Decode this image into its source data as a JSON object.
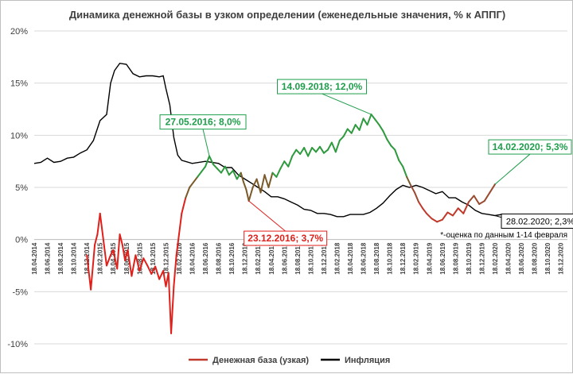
{
  "chart_data": {
    "type": "line",
    "title": "Динамика денежной базы в узком определении (еженедельные значения, % к АППГ)",
    "ylim": [
      -10,
      20
    ],
    "yticks": [
      "20%",
      "15%",
      "10%",
      "5%",
      "0%",
      "-5%",
      "-10%"
    ],
    "ytick_values": [
      20,
      15,
      10,
      5,
      0,
      -5,
      -10
    ],
    "grid": "horizontal",
    "legend_position": "bottom",
    "x_labels": [
      "18.04.2014",
      "18.06.2014",
      "18.08.2014",
      "18.10.2014",
      "18.12.2014",
      "18.02.2015",
      "18.04.2015",
      "18.06.2015",
      "18.08.2015",
      "18.10.2015",
      "18.12.2015",
      "18.02.2016",
      "18.04.2016",
      "18.06.2016",
      "18.08.2016",
      "18.10.2016",
      "18.12.2016",
      "18.02.2017",
      "18.04.2017",
      "18.06.2017",
      "18.08.2017",
      "18.10.2017",
      "18.12.2017",
      "18.02.2018",
      "18.04.2018",
      "18.06.2018",
      "18.08.2018",
      "18.10.2018",
      "18.12.2018",
      "18.02.2019",
      "18.04.2019",
      "18.06.2019",
      "18.08.2019",
      "18.10.2019",
      "18.12.2019",
      "18.02.2020",
      "18.04.2020",
      "18.06.2020",
      "18.08.2020",
      "18.10.2020",
      "18.12.2020"
    ],
    "series": [
      {
        "name": "Денежная база (узкая)",
        "color": "#c0392b",
        "points": [
          [
            4.0,
            -1.5
          ],
          [
            4.3,
            -4.8
          ],
          [
            4.6,
            -0.5
          ],
          [
            4.8,
            0.5
          ],
          [
            5.0,
            2.5
          ],
          [
            5.3,
            -0.5
          ],
          [
            5.5,
            -2.5
          ],
          [
            5.8,
            -1.5
          ],
          [
            6.0,
            -1.0
          ],
          [
            6.3,
            -2.8
          ],
          [
            6.5,
            0.5
          ],
          [
            6.7,
            -0.5
          ],
          [
            6.9,
            -2.0
          ],
          [
            7.1,
            -1.0
          ],
          [
            7.4,
            -3.5
          ],
          [
            7.7,
            -1.5
          ],
          [
            8.0,
            -3.0
          ],
          [
            8.3,
            -1.8
          ],
          [
            8.6,
            -2.5
          ],
          [
            8.9,
            -3.3
          ],
          [
            9.2,
            -2.6
          ],
          [
            9.5,
            -3.8
          ],
          [
            9.8,
            -3.0
          ],
          [
            10.0,
            -4.5
          ],
          [
            10.2,
            -3.2
          ],
          [
            10.4,
            -9.0
          ],
          [
            10.6,
            -4.5
          ],
          [
            10.8,
            -1.5
          ],
          [
            11.0,
            0.5
          ],
          [
            11.2,
            2.5
          ],
          [
            11.5,
            4.0
          ],
          [
            11.8,
            5.0
          ],
          [
            12.1,
            5.5
          ],
          [
            12.4,
            6.0
          ],
          [
            12.7,
            6.5
          ],
          [
            13.0,
            7.0
          ],
          [
            13.3,
            8.0
          ],
          [
            13.6,
            7.2
          ],
          [
            13.9,
            6.8
          ],
          [
            14.2,
            6.4
          ],
          [
            14.5,
            7.0
          ],
          [
            14.8,
            6.2
          ],
          [
            15.1,
            6.6
          ],
          [
            15.4,
            5.8
          ],
          [
            15.7,
            6.4
          ],
          [
            15.9,
            5.5
          ],
          [
            16.1,
            4.8
          ],
          [
            16.3,
            3.7
          ],
          [
            16.6,
            5.0
          ],
          [
            16.9,
            5.8
          ],
          [
            17.2,
            4.5
          ],
          [
            17.5,
            6.2
          ],
          [
            17.8,
            5.0
          ],
          [
            18.1,
            6.4
          ],
          [
            18.4,
            6.0
          ],
          [
            18.7,
            6.8
          ],
          [
            19.0,
            7.5
          ],
          [
            19.3,
            7.0
          ],
          [
            19.6,
            8.0
          ],
          [
            19.9,
            8.6
          ],
          [
            20.2,
            8.2
          ],
          [
            20.5,
            8.8
          ],
          [
            20.8,
            8.0
          ],
          [
            21.1,
            8.8
          ],
          [
            21.4,
            8.4
          ],
          [
            21.7,
            8.9
          ],
          [
            22.0,
            8.3
          ],
          [
            22.3,
            8.6
          ],
          [
            22.6,
            9.3
          ],
          [
            22.9,
            8.4
          ],
          [
            23.2,
            9.5
          ],
          [
            23.5,
            9.9
          ],
          [
            23.8,
            10.6
          ],
          [
            24.1,
            10.2
          ],
          [
            24.4,
            11.0
          ],
          [
            24.7,
            10.5
          ],
          [
            25.0,
            11.6
          ],
          [
            25.3,
            11.0
          ],
          [
            25.6,
            12.0
          ],
          [
            25.9,
            11.5
          ],
          [
            26.2,
            11.0
          ],
          [
            26.5,
            10.4
          ],
          [
            26.8,
            9.6
          ],
          [
            27.1,
            9.0
          ],
          [
            27.4,
            8.6
          ],
          [
            27.7,
            7.6
          ],
          [
            28.0,
            7.0
          ],
          [
            28.3,
            6.0
          ],
          [
            28.6,
            5.2
          ],
          [
            28.9,
            4.5
          ],
          [
            29.2,
            3.6
          ],
          [
            29.5,
            3.0
          ],
          [
            29.8,
            2.5
          ],
          [
            30.2,
            2.0
          ],
          [
            30.6,
            1.7
          ],
          [
            31.0,
            1.9
          ],
          [
            31.4,
            2.6
          ],
          [
            31.8,
            2.3
          ],
          [
            32.2,
            3.0
          ],
          [
            32.6,
            2.5
          ],
          [
            33.0,
            3.6
          ],
          [
            33.4,
            4.2
          ],
          [
            33.8,
            3.4
          ],
          [
            34.2,
            3.7
          ],
          [
            34.6,
            4.5
          ],
          [
            35.0,
            5.3
          ]
        ]
      },
      {
        "name": "Инфляция",
        "color": "#000000",
        "points": [
          [
            0.0,
            7.3
          ],
          [
            0.5,
            7.4
          ],
          [
            1.0,
            7.8
          ],
          [
            1.5,
            7.4
          ],
          [
            2.0,
            7.5
          ],
          [
            2.5,
            7.8
          ],
          [
            3.0,
            7.9
          ],
          [
            3.5,
            8.3
          ],
          [
            4.0,
            8.6
          ],
          [
            4.5,
            9.5
          ],
          [
            5.0,
            11.4
          ],
          [
            5.5,
            12.0
          ],
          [
            5.8,
            15.0
          ],
          [
            6.1,
            16.2
          ],
          [
            6.5,
            16.9
          ],
          [
            7.0,
            16.8
          ],
          [
            7.5,
            15.9
          ],
          [
            8.0,
            15.6
          ],
          [
            8.5,
            15.7
          ],
          [
            9.0,
            15.7
          ],
          [
            9.5,
            15.6
          ],
          [
            9.8,
            15.7
          ],
          [
            10.0,
            14.5
          ],
          [
            10.3,
            12.9
          ],
          [
            10.6,
            9.8
          ],
          [
            10.9,
            8.1
          ],
          [
            11.2,
            7.6
          ],
          [
            12.0,
            7.3
          ],
          [
            13.0,
            7.5
          ],
          [
            14.0,
            7.3
          ],
          [
            14.5,
            6.9
          ],
          [
            15.0,
            6.9
          ],
          [
            15.5,
            6.2
          ],
          [
            16.0,
            5.8
          ],
          [
            16.5,
            5.4
          ],
          [
            17.0,
            5.0
          ],
          [
            17.5,
            4.6
          ],
          [
            18.0,
            4.1
          ],
          [
            18.5,
            4.1
          ],
          [
            19.0,
            3.9
          ],
          [
            19.5,
            3.6
          ],
          [
            20.0,
            3.3
          ],
          [
            20.5,
            2.9
          ],
          [
            21.0,
            2.8
          ],
          [
            21.5,
            2.5
          ],
          [
            22.0,
            2.5
          ],
          [
            22.5,
            2.4
          ],
          [
            23.0,
            2.2
          ],
          [
            23.5,
            2.2
          ],
          [
            24.0,
            2.4
          ],
          [
            24.5,
            2.4
          ],
          [
            25.0,
            2.4
          ],
          [
            25.5,
            2.6
          ],
          [
            26.0,
            3.0
          ],
          [
            26.5,
            3.5
          ],
          [
            27.0,
            4.2
          ],
          [
            27.5,
            4.8
          ],
          [
            28.0,
            5.2
          ],
          [
            28.5,
            5.0
          ],
          [
            29.0,
            5.2
          ],
          [
            29.5,
            5.0
          ],
          [
            30.0,
            4.7
          ],
          [
            30.5,
            4.4
          ],
          [
            31.0,
            4.6
          ],
          [
            31.5,
            4.0
          ],
          [
            32.0,
            4.0
          ],
          [
            32.5,
            3.6
          ],
          [
            33.0,
            3.3
          ],
          [
            33.5,
            2.8
          ],
          [
            34.0,
            2.5
          ],
          [
            34.5,
            2.4
          ],
          [
            35.0,
            2.3
          ],
          [
            35.5,
            2.4
          ]
        ]
      }
    ],
    "annotations": [
      {
        "text": "27.05.2016; 8,0%",
        "color": "#1e9e4b",
        "x": 13.3,
        "y": 8.0
      },
      {
        "text": "14.09.2018; 12,0%",
        "color": "#1e9e4b",
        "x": 25.6,
        "y": 12.0
      },
      {
        "text": "14.02.2020; 5,3%",
        "color": "#1e9e4b",
        "x": 35.0,
        "y": 5.3
      },
      {
        "text": "23.12.2016; 3,7%",
        "color": "#e0201a",
        "x": 16.3,
        "y": 3.7
      },
      {
        "text": "28.02.2020; 2,3%",
        "color": "#000000",
        "x": 35.0,
        "y": 2.3
      }
    ],
    "note": "*-оценка по данным 1-14 февраля"
  }
}
